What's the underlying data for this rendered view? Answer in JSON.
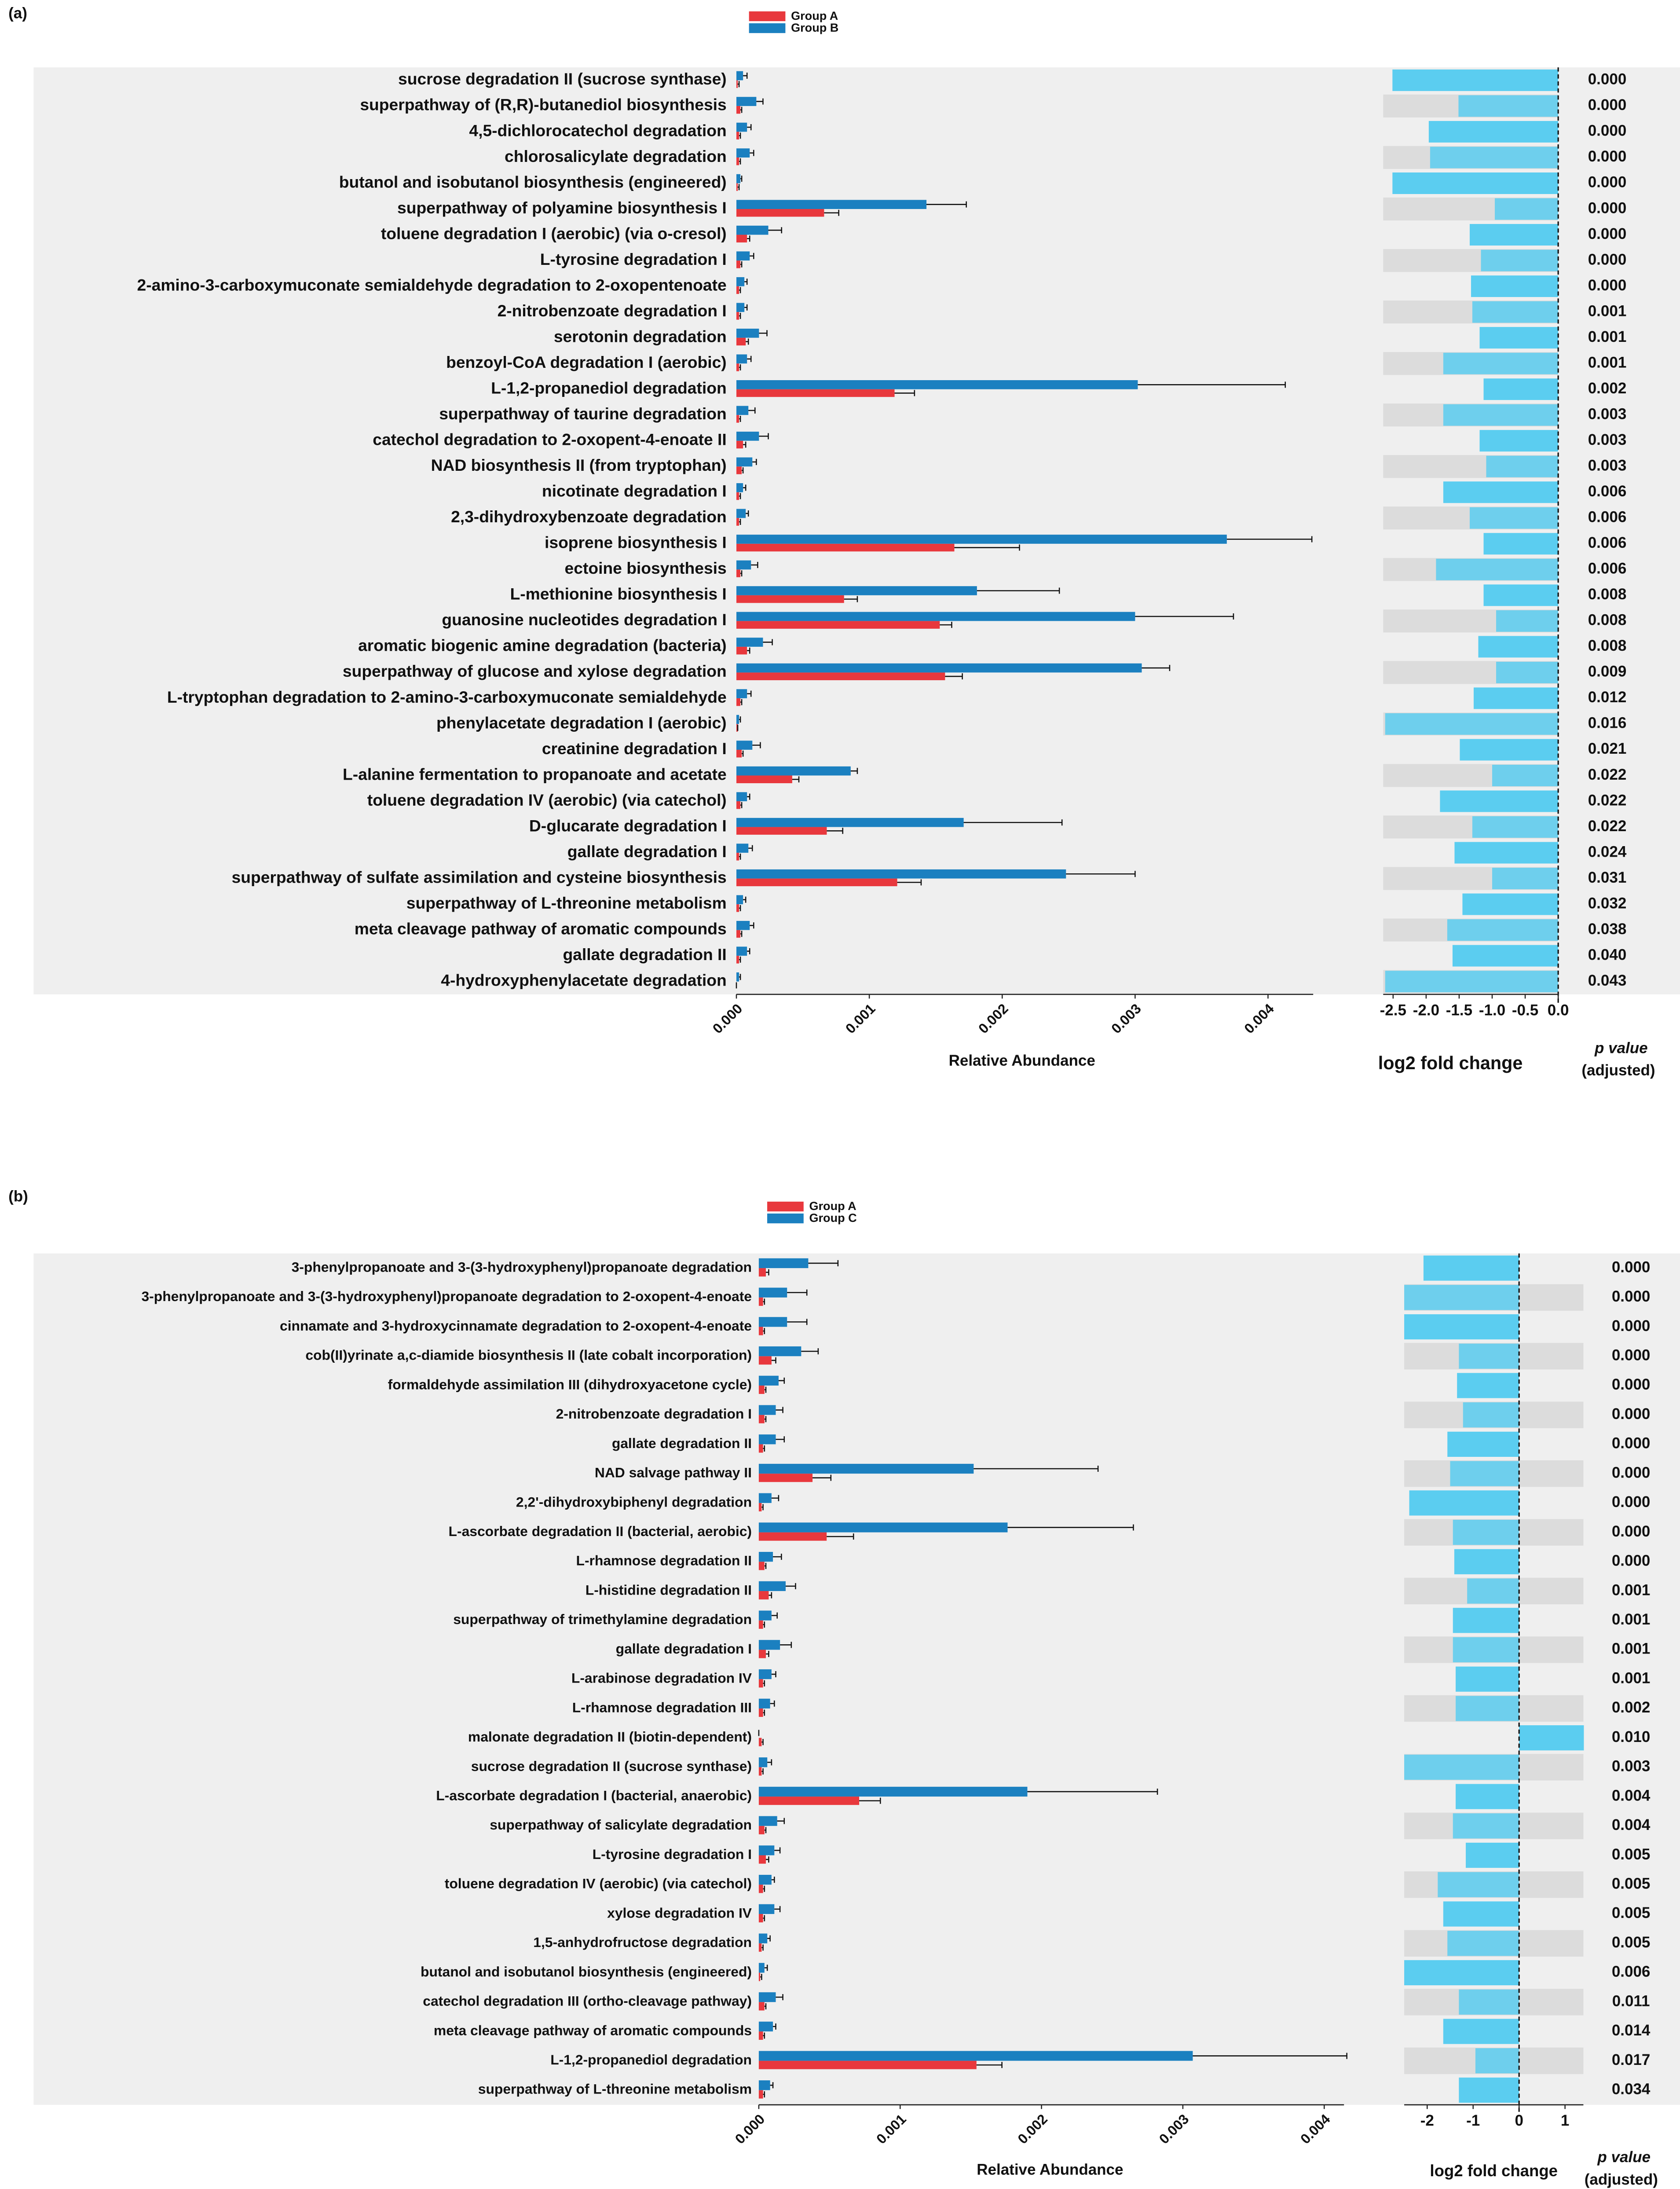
{
  "chart_data": [
    {
      "type": "bar",
      "panel_label": "(a)",
      "legend": "top",
      "categories": [
        "sucrose degradation II (sucrose synthase)",
        "superpathway of (R,R)-butanediol biosynthesis",
        "4,5-dichlorocatechol degradation",
        "chlorosalicylate degradation",
        "butanol and isobutanol biosynthesis (engineered)",
        "superpathway of polyamine biosynthesis I",
        "toluene degradation I (aerobic) (via o-cresol)",
        "L-tyrosine degradation I",
        "2-amino-3-carboxymuconate semialdehyde degradation to 2-oxopentenoate",
        "2-nitrobenzoate degradation I",
        "serotonin degradation",
        "benzoyl-CoA degradation I (aerobic)",
        "L-1,2-propanediol degradation",
        "superpathway of taurine degradation",
        "catechol degradation to 2-oxopent-4-enoate II",
        "NAD biosynthesis II (from tryptophan)",
        "nicotinate degradation I",
        "2,3-dihydroxybenzoate degradation",
        "isoprene biosynthesis I",
        "ectoine biosynthesis",
        "L-methionine biosynthesis I",
        "guanosine nucleotides degradation I",
        "aromatic biogenic amine degradation (bacteria)",
        "superpathway of glucose and xylose degradation",
        "L-tryptophan degradation to 2-amino-3-carboxymuconate semialdehyde",
        "phenylacetate degradation I (aerobic)",
        "creatinine degradation I",
        "L-alanine fermentation to propanoate and acetate",
        "toluene degradation IV (aerobic) (via catechol)",
        "D-glucarate degradation I",
        "gallate degradation I",
        "superpathway of sulfate assimilation and cysteine biosynthesis",
        "superpathway of L-threonine metabolism",
        "meta cleavage pathway of aromatic compounds",
        "gallate degradation II",
        "4-hydroxyphenylacetate degradation"
      ],
      "series": [
        {
          "name": "Group A",
          "color": "#e8383d",
          "values": [
            1e-05,
            3e-05,
            2e-05,
            2e-05,
            1e-05,
            0.00066,
            8e-05,
            3e-05,
            2e-05,
            2e-05,
            7e-05,
            2e-05,
            0.00119,
            2e-05,
            5e-05,
            4e-05,
            2e-05,
            2e-05,
            0.00164,
            3e-05,
            0.00081,
            0.00153,
            8e-05,
            0.00157,
            3e-05,
            1e-05,
            4e-05,
            0.00042,
            3e-05,
            0.00068,
            2e-05,
            0.00121,
            2e-05,
            3e-05,
            2e-05,
            0
          ],
          "errors": [
            1e-05,
            1e-05,
            1e-05,
            1e-05,
            1e-05,
            0.00011,
            2e-05,
            1e-05,
            1e-05,
            1e-05,
            2e-05,
            1e-05,
            0.00015,
            1e-05,
            2e-05,
            1e-05,
            1e-05,
            1e-05,
            0.00049,
            1e-05,
            0.0001,
            9e-05,
            2e-05,
            0.00013,
            1e-05,
            0,
            1e-05,
            5e-05,
            1e-05,
            0.00012,
            1e-05,
            0.00018,
            1e-05,
            1e-05,
            1e-05,
            0
          ]
        },
        {
          "name": "Group B",
          "color": "#1b80c0",
          "values": [
            5e-05,
            0.00015,
            8e-05,
            0.0001,
            3e-05,
            0.00143,
            0.00024,
            0.0001,
            6e-05,
            6e-05,
            0.00017,
            8e-05,
            0.00302,
            9e-05,
            0.00017,
            0.00012,
            5e-05,
            7e-05,
            0.00369,
            0.00011,
            0.00181,
            0.003,
            0.0002,
            0.00305,
            8e-05,
            2e-05,
            0.00012,
            0.00086,
            8e-05,
            0.00171,
            9e-05,
            0.00248,
            5e-05,
            0.0001,
            8e-05,
            2e-05
          ],
          "errors": [
            3e-05,
            5e-05,
            3e-05,
            3e-05,
            1e-05,
            0.0003,
            0.0001,
            3e-05,
            2e-05,
            2e-05,
            6e-05,
            3e-05,
            0.00111,
            5e-05,
            7e-05,
            3e-05,
            2e-05,
            2e-05,
            0.00064,
            5e-05,
            0.00062,
            0.00074,
            7e-05,
            0.00021,
            3e-05,
            1e-05,
            6e-05,
            5e-05,
            2e-05,
            0.00074,
            3e-05,
            0.00052,
            2e-05,
            3e-05,
            2e-05,
            1e-05
          ]
        }
      ],
      "xlabel": "Relative Abundance",
      "xlim": [
        0,
        0.00434
      ],
      "xticks": [
        {
          "value": 0,
          "label": "0.000"
        },
        {
          "value": 0.001,
          "label": "0.001"
        },
        {
          "value": 0.002,
          "label": "0.002"
        },
        {
          "value": 0.003,
          "label": "0.003"
        },
        {
          "value": 0.004,
          "label": "0.004"
        }
      ],
      "fold_change": {
        "xlabel": "log2 fold change",
        "color": "#5bcdf0",
        "xlim": [
          -2.65,
          0
        ],
        "xticks": [
          -2.5,
          {
            "value": -2,
            "label": "-2.0"
          },
          -1.5,
          {
            "value": -1,
            "label": "-1.0"
          },
          -0.5,
          {
            "value": 0,
            "label": "0.0"
          }
        ],
        "values": [
          -2.51,
          -1.51,
          -1.96,
          -1.94,
          -2.51,
          -0.96,
          -1.34,
          -1.17,
          -1.32,
          -1.3,
          -1.19,
          -1.74,
          -1.13,
          -1.74,
          -1.19,
          -1.09,
          -1.74,
          -1.34,
          -1.13,
          -1.85,
          -1.13,
          -0.94,
          -1.21,
          -0.94,
          -1.28,
          -2.62,
          -1.49,
          -1.0,
          -1.79,
          -1.3,
          -1.57,
          -1.0,
          -1.45,
          -1.68,
          -1.6,
          -2.62
        ]
      },
      "p_value_label": "p value",
      "p_value_sublabel": "(adjusted)",
      "p_values": [
        "0.000",
        "0.000",
        "0.000",
        "0.000",
        "0.000",
        "0.000",
        "0.000",
        "0.000",
        "0.000",
        "0.001",
        "0.001",
        "0.001",
        "0.002",
        "0.003",
        "0.003",
        "0.003",
        "0.006",
        "0.006",
        "0.006",
        "0.006",
        "0.008",
        "0.008",
        "0.008",
        "0.009",
        "0.012",
        "0.016",
        "0.021",
        "0.022",
        "0.022",
        "0.022",
        "0.024",
        "0.031",
        "0.032",
        "0.038",
        "0.040",
        "0.043"
      ]
    },
    {
      "type": "bar",
      "panel_label": "(b)",
      "legend": "top",
      "categories": [
        "3-phenylpropanoate and 3-(3-hydroxyphenyl)propanoate degradation",
        "3-phenylpropanoate and 3-(3-hydroxyphenyl)propanoate degradation to 2-oxopent-4-enoate",
        "cinnamate and 3-hydroxycinnamate degradation to 2-oxopent-4-enoate",
        "cob(II)yrinate a,c-diamide biosynthesis II (late cobalt incorporation)",
        "formaldehyde assimilation III (dihydroxyacetone cycle)",
        "2-nitrobenzoate degradation I",
        "gallate degradation II",
        "NAD salvage pathway II",
        "2,2'-dihydroxybiphenyl degradation",
        "L-ascorbate degradation II (bacterial, aerobic)",
        "L-rhamnose degradation II",
        "L-histidine degradation II",
        "superpathway of trimethylamine degradation",
        "gallate degradation I",
        "L-arabinose degradation IV",
        "L-rhamnose degradation III",
        "malonate degradation II (biotin-dependent)",
        "sucrose degradation II (sucrose synthase)",
        "L-ascorbate degradation I (bacterial, anaerobic)",
        "superpathway of salicylate degradation",
        "L-tyrosine degradation I",
        "toluene degradation IV (aerobic) (via catechol)",
        "xylose degradation IV",
        "1,5-anhydrofructose degradation",
        "butanol and isobutanol biosynthesis (engineered)",
        "catechol degradation III (ortho-cleavage pathway)",
        "meta cleavage pathway of aromatic compounds",
        "L-1,2-propanediol degradation",
        "superpathway of L-threonine metabolism"
      ],
      "series": [
        {
          "name": "Group A",
          "color": "#e8383d",
          "values": [
            5e-05,
            3e-05,
            3e-05,
            9e-05,
            4e-05,
            4e-05,
            3e-05,
            0.00038,
            2e-05,
            0.00048,
            4e-05,
            7e-05,
            3e-05,
            5e-05,
            3e-05,
            3e-05,
            2e-05,
            2e-05,
            0.00071,
            4e-05,
            5e-05,
            3e-05,
            3e-05,
            2e-05,
            1e-05,
            4e-05,
            3e-05,
            0.00154,
            3e-05
          ],
          "errors": [
            2e-05,
            1e-05,
            1e-05,
            3e-05,
            1e-05,
            1e-05,
            1e-05,
            0.00013,
            1e-05,
            0.00019,
            1e-05,
            2e-05,
            1e-05,
            2e-05,
            1e-05,
            1e-05,
            1e-05,
            1e-05,
            0.00015,
            1e-05,
            2e-05,
            1e-05,
            1e-05,
            1e-05,
            1e-05,
            1e-05,
            1e-05,
            0.00018,
            1e-05
          ]
        },
        {
          "name": "Group C",
          "color": "#1b80c0",
          "values": [
            0.00035,
            0.0002,
            0.0002,
            0.0003,
            0.00014,
            0.00012,
            0.00012,
            0.00152,
            9e-05,
            0.00176,
            0.0001,
            0.00019,
            9e-05,
            0.00015,
            9e-05,
            8e-05,
            0,
            6e-05,
            0.0019,
            0.00013,
            0.00011,
            9e-05,
            0.00011,
            6e-05,
            4e-05,
            0.00012,
            0.0001,
            0.00307,
            8e-05
          ],
          "errors": [
            0.00021,
            0.00014,
            0.00014,
            0.00012,
            4e-05,
            5e-05,
            6e-05,
            0.00088,
            5e-05,
            0.00089,
            6e-05,
            7e-05,
            4e-05,
            8e-05,
            3e-05,
            3e-05,
            0,
            3e-05,
            0.00092,
            5e-05,
            4e-05,
            2e-05,
            4e-05,
            2e-05,
            2e-05,
            5e-05,
            2e-05,
            0.00109,
            2e-05
          ]
        }
      ],
      "xlabel": "Relative Abundance",
      "xlim": [
        0,
        0.00414
      ],
      "xticks": [
        {
          "value": 0,
          "label": "0.000"
        },
        {
          "value": 0.001,
          "label": "0.001"
        },
        {
          "value": 0.002,
          "label": "0.002"
        },
        {
          "value": 0.003,
          "label": "0.003"
        },
        {
          "value": 0.004,
          "label": "0.004"
        }
      ],
      "fold_change": {
        "xlabel": "log2 fold change",
        "color": "#5bcdf0",
        "xlim": [
          -2.5,
          1.4
        ],
        "xticks": [
          -2,
          -1,
          0,
          1
        ],
        "values": [
          -2.08,
          -2.5,
          -2.5,
          -1.31,
          -1.35,
          -1.22,
          -1.56,
          -1.5,
          -2.39,
          -1.44,
          -1.41,
          -1.13,
          -1.44,
          -1.44,
          -1.38,
          -1.38,
          1.41,
          -2.5,
          -1.38,
          -1.44,
          -1.16,
          -1.77,
          -1.65,
          -1.56,
          -2.5,
          -1.31,
          -1.65,
          -0.95,
          -1.31
        ]
      },
      "p_value_label": "p value",
      "p_value_sublabel": "(adjusted)",
      "p_values": [
        "0.000",
        "0.000",
        "0.000",
        "0.000",
        "0.000",
        "0.000",
        "0.000",
        "0.000",
        "0.000",
        "0.000",
        "0.000",
        "0.001",
        "0.001",
        "0.001",
        "0.001",
        "0.002",
        "0.010",
        "0.003",
        "0.004",
        "0.004",
        "0.005",
        "0.005",
        "0.005",
        "0.005",
        "0.006",
        "0.011",
        "0.014",
        "0.017",
        "0.034"
      ]
    }
  ]
}
